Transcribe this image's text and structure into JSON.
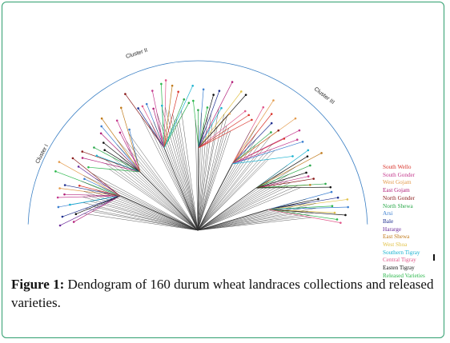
{
  "clusters": [
    {
      "label": "Cluster I"
    },
    {
      "label": "Cluster II"
    },
    {
      "label": "Cluster III"
    }
  ],
  "legend": [
    {
      "label": "South Wello",
      "color": "#d9342b"
    },
    {
      "label": "South Gonder",
      "color": "#c43a8e"
    },
    {
      "label": "West Gojam",
      "color": "#e39a4b"
    },
    {
      "label": "East Gojam",
      "color": "#b2207a"
    },
    {
      "label": "North Gonder",
      "color": "#8b1c1c"
    },
    {
      "label": "North Shewa",
      "color": "#2aa84a"
    },
    {
      "label": "Arsi",
      "color": "#3c7fd0"
    },
    {
      "label": "Bale",
      "color": "#1f2f8f"
    },
    {
      "label": "Hararge",
      "color": "#6a2a9a"
    },
    {
      "label": "East Shewa",
      "color": "#c07a1a"
    },
    {
      "label": "West Shoa",
      "color": "#e2c34a"
    },
    {
      "label": "Southern Tigray",
      "color": "#19b2d0"
    },
    {
      "label": "Central Tigray",
      "color": "#e0588a"
    },
    {
      "label": "Easten Tigray",
      "color": "#111111"
    },
    {
      "label": "Released Varieties",
      "color": "#2db84d"
    }
  ],
  "caption": {
    "label": "Figure 1:",
    "text": " Dendogram of 160 durum wheat landraces collections and released varieties."
  }
}
